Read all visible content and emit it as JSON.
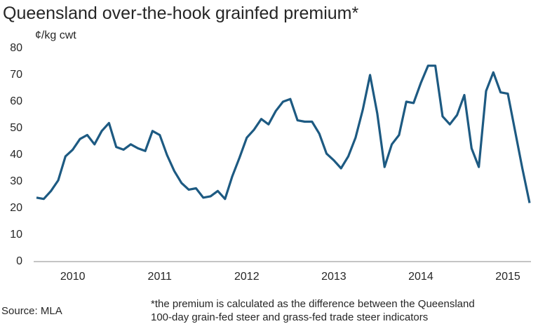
{
  "chart_data": {
    "type": "line",
    "title": "Queensland over-the-hook grainfed premium*",
    "y_label": "¢/kg cwt",
    "source": "Source: MLA",
    "footnote": [
      "*the premium is calculated as the difference between the Queensland",
      "100-day grain-fed steer and grass-fed trade steer indicators"
    ],
    "categories": [
      null,
      null,
      null,
      null,
      null,
      "2010",
      null,
      null,
      null,
      null,
      null,
      null,
      null,
      null,
      null,
      null,
      null,
      "2011",
      null,
      null,
      null,
      null,
      null,
      null,
      null,
      null,
      null,
      null,
      null,
      "2012",
      null,
      null,
      null,
      null,
      null,
      null,
      null,
      null,
      null,
      null,
      null,
      "2013",
      null,
      null,
      null,
      null,
      null,
      null,
      null,
      null,
      null,
      null,
      null,
      "2014",
      null,
      null,
      null,
      null,
      null,
      null,
      null,
      null,
      null,
      null,
      null,
      "2015",
      null,
      null,
      null
    ],
    "series": [
      {
        "name": "premium",
        "color": "#1d5a82",
        "values": [
          24,
          23.5,
          26.5,
          30.5,
          39.5,
          42,
          46,
          47.5,
          44,
          49,
          52,
          43,
          42,
          44,
          42.5,
          41.5,
          49,
          47.5,
          40,
          34,
          29.5,
          27,
          27.5,
          24,
          24.5,
          26.5,
          23.5,
          32,
          39,
          46.5,
          49.5,
          53.5,
          51.5,
          56.5,
          60,
          61,
          53,
          52.5,
          52.5,
          48,
          40.5,
          38,
          35,
          39.5,
          46.5,
          57,
          70,
          55.5,
          35.5,
          44,
          47.5,
          60,
          59.5,
          67,
          73.5,
          73.5,
          54.5,
          51.5,
          55,
          62.5,
          42.5,
          35.5,
          64,
          71,
          63.5,
          63,
          49,
          35,
          22
        ]
      }
    ],
    "ylim": [
      0,
      80
    ],
    "yticks": [
      0,
      10,
      20,
      30,
      40,
      50,
      60,
      70,
      80
    ],
    "grid": false,
    "legend": false
  }
}
